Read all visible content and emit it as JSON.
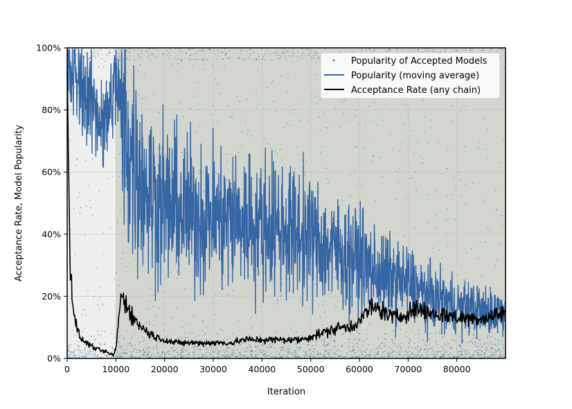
{
  "chart_data": {
    "type": "line",
    "xlabel": "Iteration",
    "ylabel": "Acceptance Rate, Model Popularity",
    "xlim": [
      0,
      90000
    ],
    "ylim": [
      0,
      100
    ],
    "x_ticks": [
      0,
      10000,
      20000,
      30000,
      40000,
      50000,
      60000,
      70000,
      80000
    ],
    "x_tick_labels": [
      "0",
      "10000",
      "20000",
      "30000",
      "40000",
      "50000",
      "60000",
      "70000",
      "80000"
    ],
    "y_ticks": [
      0,
      20,
      40,
      60,
      80,
      100
    ],
    "y_tick_labels": [
      "0%",
      "20%",
      "40%",
      "60%",
      "80%",
      "100%"
    ],
    "grid": true,
    "legend_position": "top-right",
    "background_regions": [
      {
        "x_start": 0,
        "x_end": 10000,
        "color": "#efefed"
      },
      {
        "x_start": 10000,
        "x_end": 90000,
        "color": "#d3d6ce"
      }
    ],
    "series": [
      {
        "name": "Popularity of Accepted Models",
        "style": "scatter",
        "color": "#3465a4",
        "density": "dense near 0-10% and near 100%, sparse in between"
      },
      {
        "name": "Popularity (moving average)",
        "style": "line",
        "color": "#3465a4",
        "x": [
          0,
          2000,
          4000,
          6000,
          8000,
          10000,
          12000,
          14000,
          16000,
          18000,
          20000,
          22000,
          24000,
          26000,
          28000,
          30000,
          32000,
          34000,
          36000,
          38000,
          40000,
          42000,
          44000,
          46000,
          48000,
          50000,
          52000,
          54000,
          56000,
          58000,
          60000,
          62000,
          64000,
          66000,
          68000,
          70000,
          72000,
          74000,
          76000,
          78000,
          80000,
          82000,
          84000,
          86000,
          88000,
          90000
        ],
        "y": [
          93,
          90,
          85,
          80,
          75,
          90,
          72,
          62,
          56,
          52,
          50,
          48,
          47,
          47,
          46,
          46,
          45,
          45,
          44,
          44,
          43,
          43,
          42,
          41,
          40,
          39,
          37,
          35,
          34,
          33,
          32,
          29,
          27,
          26,
          25,
          24,
          22,
          20,
          19,
          18,
          17,
          16,
          16,
          15,
          15,
          15
        ]
      },
      {
        "name": "Acceptance Rate (any chain)",
        "style": "line",
        "color": "#000000",
        "x": [
          0,
          500,
          1000,
          2000,
          3000,
          4000,
          6000,
          8000,
          9500,
          10000,
          11000,
          12000,
          14000,
          16000,
          18000,
          20000,
          22000,
          24000,
          26000,
          28000,
          30000,
          32000,
          34000,
          36000,
          38000,
          40000,
          42000,
          44000,
          46000,
          48000,
          50000,
          52000,
          54000,
          56000,
          58000,
          60000,
          62000,
          64000,
          66000,
          68000,
          70000,
          72000,
          74000,
          76000,
          78000,
          80000,
          82000,
          84000,
          86000,
          88000,
          90000
        ],
        "y": [
          92,
          40,
          20,
          9,
          6,
          5,
          3,
          2,
          1,
          3,
          20,
          18,
          12,
          9,
          7,
          6,
          5,
          5,
          5,
          5,
          5,
          5,
          5,
          6,
          6,
          6,
          6,
          6,
          6,
          6,
          7,
          8,
          9,
          10,
          10,
          12,
          16,
          16,
          14,
          13,
          15,
          16,
          15,
          14,
          14,
          13,
          13,
          13,
          13,
          14,
          15
        ]
      }
    ]
  }
}
